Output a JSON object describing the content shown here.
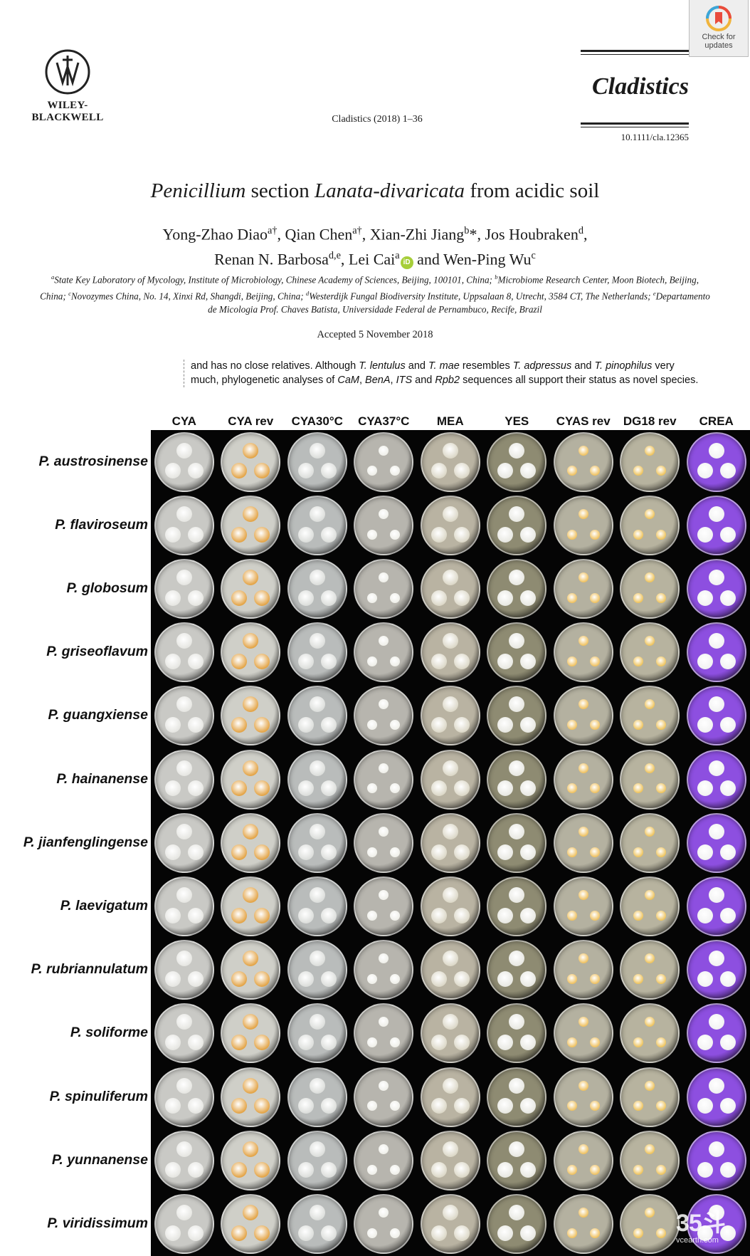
{
  "publisher": {
    "name": "WILEY-\nBLACKWELL",
    "logo_icon": "wiley-blackwell-logo"
  },
  "badge": {
    "label": "Check for updates",
    "icon": "crossmark-icon"
  },
  "journal": {
    "title": "Cladistics",
    "citation": "Cladistics (2018) 1–36",
    "doi": "10.1111/cla.12365"
  },
  "paper": {
    "title_parts": [
      {
        "text": "Penicillium",
        "italic": true
      },
      {
        "text": " section ",
        "italic": false
      },
      {
        "text": "Lanata-divaricata",
        "italic": true
      },
      {
        "text": " from acidic soil",
        "italic": false
      }
    ],
    "authors": [
      {
        "name": "Yong-Zhao Diao",
        "sup": "a†",
        "sep": ", "
      },
      {
        "name": "Qian Chen",
        "sup": "a†",
        "sep": ", "
      },
      {
        "name": "Xian-Zhi Jiang",
        "sup": "b",
        "tail": "*",
        "sep": ", "
      },
      {
        "name": "Jos Houbraken",
        "sup": "d",
        "sep": ",",
        "break": true
      },
      {
        "name": "Renan N. Barbosa",
        "sup": "d,e",
        "sep": ", "
      },
      {
        "name": "Lei Cai",
        "sup": "a",
        "orcid": true,
        "sep": " and "
      },
      {
        "name": "Wen-Ping Wu",
        "sup": "c",
        "sep": ""
      }
    ],
    "affiliations": [
      {
        "sup": "a",
        "text": "State Key Laboratory of Mycology, Institute of Microbiology, Chinese Academy of Sciences, Beijing, 100101, China; "
      },
      {
        "sup": "b",
        "text": "Microbiome Research Center, Moon Biotech, Beijing, China; "
      },
      {
        "sup": "c",
        "text": "Novozymes China, No. 14, Xinxi Rd, Shangdi, Beijing, China; "
      },
      {
        "sup": "d",
        "text": "Westerdijk Fungal Biodiversity Institute, Uppsalaan 8, Utrecht, 3584 CT, The Netherlands; "
      },
      {
        "sup": "e",
        "text": "Departamento de Micologia Prof. Chaves Batista, Universidade Federal de Pernambuco, Recife, Brazil"
      }
    ],
    "orcid_label": "iD",
    "accepted": "Accepted 5 November 2018"
  },
  "excerpt": {
    "parts": [
      {
        "t": "and has no close relatives. Although ",
        "i": false
      },
      {
        "t": "T. lentulus",
        "i": true
      },
      {
        "t": " and ",
        "i": false
      },
      {
        "t": "T. mae",
        "i": true
      },
      {
        "t": " resembles ",
        "i": false
      },
      {
        "t": "T. adpressus",
        "i": true
      },
      {
        "t": " and ",
        "i": false
      },
      {
        "t": "T. pinophilus",
        "i": true
      },
      {
        "t": " very much, phylogenetic analyses of ",
        "i": false
      },
      {
        "t": "CaM",
        "i": true
      },
      {
        "t": ", ",
        "i": false
      },
      {
        "t": "BenA",
        "i": true
      },
      {
        "t": ", ",
        "i": false
      },
      {
        "t": "ITS",
        "i": true
      },
      {
        "t": " and ",
        "i": false
      },
      {
        "t": "Rpb2",
        "i": true
      },
      {
        "t": " sequences all support their status as novel species.",
        "i": false
      }
    ]
  },
  "plate": {
    "media": [
      "CYA",
      "CYA rev",
      "CYA30°C",
      "CYA37°C",
      "MEA",
      "YES",
      "CYAS rev",
      "DG18 rev",
      "CREA"
    ],
    "species": [
      "P. austrosinense",
      "P. flaviroseum",
      "P. globosum",
      "P. griseoflavum",
      "P. guangxiense",
      "P. hainanense",
      "P. jianfenglingense",
      "P. laevigatum",
      "P. rubriannulatum",
      "P. soliforme",
      "P. spinuliferum",
      "P. yunnanense",
      "P. viridissimum"
    ],
    "colors": {
      "CYA": {
        "bg": "#c9c9c5",
        "colony": "#e6e6e2"
      },
      "CYA rev": {
        "bg": "#cfcfc8",
        "colony": "#e3a447"
      },
      "CYA30°C": {
        "bg": "#b9bcbb",
        "colony": "#dcdedb"
      },
      "CYA37°C": {
        "bg": "#b7b5ae",
        "colony": "#efefe9"
      },
      "MEA": {
        "bg": "#b9b3a2",
        "colony": "#dcd8c8"
      },
      "YES": {
        "bg": "#8e8b72",
        "colony": "#e8e8e2"
      },
      "CYAS rev": {
        "bg": "#b4b1a0",
        "colony": "#efc160"
      },
      "DG18 rev": {
        "bg": "#b7b39f",
        "colony": "#eec35c"
      },
      "CREA": {
        "bg": "#8d4fe0",
        "colony": "#f2f2f2"
      }
    }
  },
  "watermark": {
    "main": "35斗",
    "sub": "vcearth.com"
  }
}
